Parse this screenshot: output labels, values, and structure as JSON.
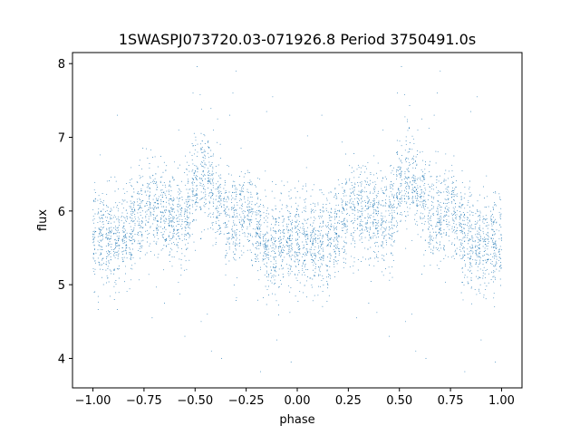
{
  "chart_data": {
    "type": "scatter",
    "title": "1SWASPJ073720.03-071926.8 Period 3750491.0s",
    "xlabel": "phase",
    "ylabel": "flux",
    "xlim": [
      -1.1,
      1.1
    ],
    "ylim": [
      3.6,
      8.15
    ],
    "xticks": [
      -1.0,
      -0.75,
      -0.5,
      -0.25,
      0.0,
      0.25,
      0.5,
      0.75,
      1.0
    ],
    "xtick_labels": [
      "−1.00",
      "−0.75",
      "−0.50",
      "−0.25",
      "0.00",
      "0.25",
      "0.50",
      "0.75",
      "1.00"
    ],
    "yticks": [
      4,
      5,
      6,
      7,
      8
    ],
    "ytick_labels": [
      "4",
      "5",
      "6",
      "7",
      "8"
    ],
    "grid": false,
    "marker_color": "#1f77b4",
    "series": [
      {
        "profile": {
          "phase": [
            0.0,
            0.05,
            0.1,
            0.15,
            0.2,
            0.25,
            0.3,
            0.35,
            0.4,
            0.45,
            0.5,
            0.55,
            0.6,
            0.65,
            0.7,
            0.75,
            0.8,
            0.85,
            0.9,
            0.95,
            1.0
          ],
          "median_flux": [
            5.55,
            5.65,
            5.55,
            5.6,
            5.8,
            6.0,
            6.05,
            5.95,
            5.9,
            5.85,
            6.3,
            6.5,
            6.2,
            5.95,
            5.9,
            6.05,
            5.75,
            5.5,
            5.55,
            5.6,
            5.55
          ]
        },
        "points": [
          [
            0.51,
            7.96
          ],
          [
            0.49,
            7.6
          ],
          [
            0.525,
            7.58
          ],
          [
            0.7,
            7.9
          ],
          [
            0.685,
            7.6
          ],
          [
            0.67,
            7.3
          ],
          [
            0.88,
            7.55
          ],
          [
            0.85,
            7.35
          ],
          [
            0.12,
            7.3
          ],
          [
            0.59,
            7.1
          ],
          [
            0.61,
            7.25
          ],
          [
            0.42,
            7.1
          ],
          [
            0.63,
            4.0
          ],
          [
            0.58,
            4.1
          ],
          [
            0.45,
            4.3
          ],
          [
            0.53,
            4.5
          ],
          [
            0.29,
            4.55
          ],
          [
            0.97,
            3.95
          ],
          [
            0.9,
            4.25
          ],
          [
            0.82,
            3.82
          ],
          [
            0.56,
            4.6
          ],
          [
            0.35,
            4.75
          ],
          [
            -0.49,
            7.96
          ],
          [
            -0.51,
            7.6
          ],
          [
            -0.475,
            7.58
          ],
          [
            -0.3,
            7.9
          ],
          [
            -0.315,
            7.6
          ],
          [
            -0.33,
            7.3
          ],
          [
            -0.12,
            7.55
          ],
          [
            -0.15,
            7.35
          ],
          [
            -0.88,
            7.3
          ],
          [
            -0.41,
            7.1
          ],
          [
            -0.39,
            7.25
          ],
          [
            -0.58,
            7.1
          ],
          [
            -0.37,
            4.0
          ],
          [
            -0.42,
            4.1
          ],
          [
            -0.55,
            4.3
          ],
          [
            -0.47,
            4.5
          ],
          [
            -0.71,
            4.55
          ],
          [
            -0.03,
            3.95
          ],
          [
            -0.1,
            4.25
          ],
          [
            -0.18,
            3.82
          ],
          [
            -0.44,
            4.6
          ],
          [
            -0.65,
            4.75
          ]
        ]
      }
    ]
  }
}
